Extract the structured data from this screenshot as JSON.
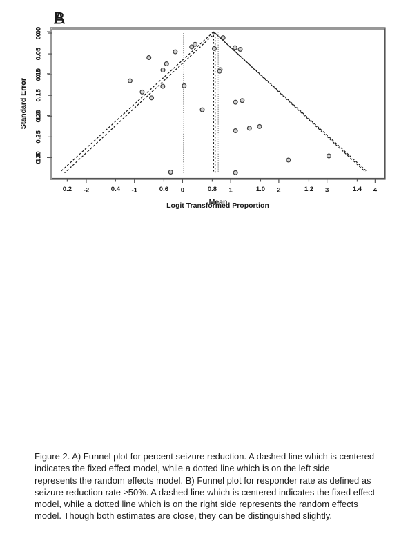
{
  "page_background": "#ffffff",
  "colors": {
    "funnel_line": "#1a1a1a",
    "fixed_effect_line": "#1a1a1a",
    "random_effects_line": "#909090",
    "point_fill": "#d4d4d4",
    "point_stroke": "#3c3c3c",
    "axis": "#555555",
    "text": "#1a1a1a"
  },
  "chart_data": [
    {
      "type": "scatter",
      "panel_label": "A",
      "description": "Funnel plot for percent seizure reduction",
      "xlabel": "Mean",
      "ylabel": "Standard Error",
      "x_ticks": [
        0.2,
        0.4,
        0.6,
        0.8,
        1.0,
        1.2,
        1.4
      ],
      "x_tick_labels": [
        "0.2",
        "0.4",
        "0.6",
        "0.8",
        "1.0",
        "1.2",
        "1.4"
      ],
      "y_ticks": [
        0.0,
        0.05,
        0.1,
        0.15,
        0.2,
        0.25,
        0.3
      ],
      "y_tick_labels": [
        "0.00",
        "0.05",
        "0.10",
        "0.15",
        "0.20",
        "0.25",
        "0.30"
      ],
      "xlim": [
        0.136,
        1.513
      ],
      "ylim": [
        -0.01,
        0.35
      ],
      "y_axis_direction": "increases-downward",
      "grid": false,
      "legend": null,
      "points": [
        [
          0.46,
          0.115
        ],
        [
          0.51,
          0.142
        ],
        [
          0.538,
          0.059
        ],
        [
          0.549,
          0.156
        ],
        [
          0.596,
          0.089
        ],
        [
          0.611,
          0.074
        ],
        [
          0.647,
          0.045
        ],
        [
          0.628,
          0.335
        ],
        [
          0.684,
          0.127
        ],
        [
          0.729,
          0.027
        ],
        [
          0.845,
          0.011
        ],
        [
          0.833,
          0.088
        ],
        [
          0.916,
          0.039
        ]
      ],
      "funnel": {
        "apex_x": 0.812,
        "apex_se": 0,
        "left_end": [
          0.189,
          0.337
        ],
        "right_end": [
          1.433,
          0.334
        ]
      },
      "fixed_effect_line": {
        "x": 0.812,
        "style": "dashed"
      },
      "random_effects_line": {
        "x": 0.681,
        "style": "dotted",
        "side": "left"
      }
    },
    {
      "type": "scatter",
      "panel_label": "B",
      "description": "Funnel plot for responder rate (seizure reduction rate >=50%)",
      "xlabel": "Logit Transformed Proportion",
      "ylabel": "Standard Error",
      "x_ticks": [
        -2,
        -1,
        0,
        1,
        2,
        3,
        4
      ],
      "x_tick_labels": [
        "-2",
        "-1",
        "0",
        "1",
        "2",
        "3",
        "4"
      ],
      "y_ticks": [
        0.0,
        0.5,
        1.0,
        1.5
      ],
      "y_tick_labels": [
        "0.0",
        "0.5",
        "1.0",
        "1.5"
      ],
      "xlim": [
        -2.745,
        4.21
      ],
      "ylim": [
        -0.05,
        1.76
      ],
      "y_axis_direction": "increases-downward",
      "grid": false,
      "legend": null,
      "points": [
        [
          -0.41,
          0.65
        ],
        [
          0.19,
          0.18
        ],
        [
          0.66,
          0.2
        ],
        [
          1.09,
          0.19
        ],
        [
          0.77,
          0.47
        ],
        [
          0.41,
          0.93
        ],
        [
          1.1,
          0.84
        ],
        [
          1.24,
          0.82
        ],
        [
          1.1,
          1.18
        ],
        [
          1.39,
          1.15
        ],
        [
          1.6,
          1.13
        ],
        [
          2.2,
          1.53
        ],
        [
          3.04,
          1.48
        ],
        [
          1.1,
          1.68
        ]
      ],
      "funnel": {
        "apex_x": 0.645,
        "apex_se": 0,
        "left_end": [
          -2.52,
          1.66
        ],
        "right_end": [
          3.84,
          1.67
        ]
      },
      "fixed_effect_line": {
        "x": 0.645,
        "style": "dashed"
      },
      "random_effects_line": {
        "x": 0.742,
        "style": "dotted",
        "side": "right"
      }
    }
  ],
  "caption": {
    "lines": [
      "Figure 2. A) Funnel plot for percent seizure reduction. A dashed line which is centered",
      "indicates the fixed effect model, while a dotted line which is on the left side",
      "represents the random effects model. B) Funnel plot for responder rate as defined as",
      "seizure reduction rate ≥50%. A dashed line which is centered indicates the fixed effect",
      "model, while a dotted line which is on the right side represents the random effects",
      "model. Though both estimates are close, they can be distinguished slightly."
    ]
  }
}
